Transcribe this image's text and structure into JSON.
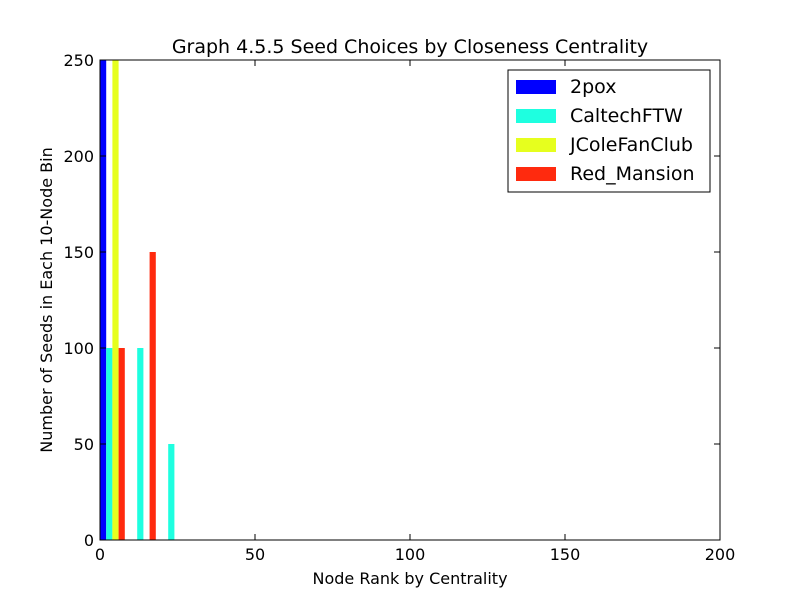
{
  "chart_data": {
    "type": "bar",
    "title": "Graph 4.5.5 Seed Choices by Closeness Centrality",
    "xlabel": "Node Rank by Centrality",
    "ylabel": "Number of Seeds in Each 10-Node Bin",
    "xlim": [
      0,
      200
    ],
    "ylim": [
      0,
      250
    ],
    "xticks": [
      0,
      50,
      100,
      150,
      200
    ],
    "yticks": [
      0,
      50,
      100,
      150,
      200,
      250
    ],
    "grid": false,
    "legend_position": "top-right",
    "bins": [
      0,
      10,
      20
    ],
    "bin_width": 10,
    "series": [
      {
        "name": "2pox",
        "color": "#0000ff",
        "values": [
          250,
          0,
          0
        ]
      },
      {
        "name": "CaltechFTW",
        "color": "#1effe0",
        "values": [
          100,
          100,
          50
        ]
      },
      {
        "name": "JColeFanClub",
        "color": "#e6ff1e",
        "values": [
          250,
          0,
          0
        ]
      },
      {
        "name": "Red_Mansion",
        "color": "#ff2a0e",
        "values": [
          100,
          150,
          0
        ]
      }
    ]
  }
}
